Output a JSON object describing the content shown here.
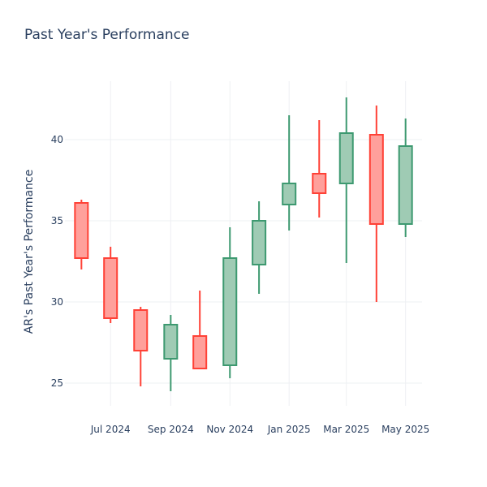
{
  "chart_data": {
    "type": "candlestick",
    "title": "Past Year's Performance",
    "xlabel": "",
    "ylabel": "AR's Past Year's Performance",
    "ylim": [
      23.6,
      43.6
    ],
    "yticks": [
      25,
      30,
      35,
      40
    ],
    "xticks": [
      {
        "label": "Jul 2024",
        "date": "2024-07-01"
      },
      {
        "label": "Sep 2024",
        "date": "2024-09-01"
      },
      {
        "label": "Nov 2024",
        "date": "2024-11-01"
      },
      {
        "label": "Jan 2025",
        "date": "2025-01-01"
      },
      {
        "label": "Mar 2025",
        "date": "2025-03-01"
      },
      {
        "label": "May 2025",
        "date": "2025-05-01"
      }
    ],
    "grid": true,
    "increasing_color": "#3d9970",
    "increasing_fill": "#9fcbb4",
    "decreasing_color": "#ff4136",
    "decreasing_fill": "#ffa09b",
    "candles": [
      {
        "date": "2024-06-01",
        "open": 36.1,
        "high": 36.3,
        "low": 32.0,
        "close": 32.7
      },
      {
        "date": "2024-07-01",
        "open": 32.7,
        "high": 33.4,
        "low": 28.7,
        "close": 29.0
      },
      {
        "date": "2024-08-01",
        "open": 29.5,
        "high": 29.7,
        "low": 24.8,
        "close": 27.0
      },
      {
        "date": "2024-09-01",
        "open": 26.5,
        "high": 29.2,
        "low": 24.5,
        "close": 28.6
      },
      {
        "date": "2024-10-01",
        "open": 27.9,
        "high": 30.7,
        "low": 25.9,
        "close": 25.9
      },
      {
        "date": "2024-11-01",
        "open": 26.1,
        "high": 34.6,
        "low": 25.3,
        "close": 32.7
      },
      {
        "date": "2024-12-01",
        "open": 32.3,
        "high": 36.2,
        "low": 30.5,
        "close": 35.0
      },
      {
        "date": "2025-01-01",
        "open": 36.0,
        "high": 41.5,
        "low": 34.4,
        "close": 37.3
      },
      {
        "date": "2025-02-01",
        "open": 37.9,
        "high": 41.2,
        "low": 35.2,
        "close": 36.7
      },
      {
        "date": "2025-03-01",
        "open": 37.3,
        "high": 42.6,
        "low": 32.4,
        "close": 40.4
      },
      {
        "date": "2025-04-01",
        "open": 40.3,
        "high": 42.1,
        "low": 30.0,
        "close": 34.8
      },
      {
        "date": "2025-05-01",
        "open": 34.8,
        "high": 41.3,
        "low": 34.0,
        "close": 39.6
      }
    ]
  }
}
